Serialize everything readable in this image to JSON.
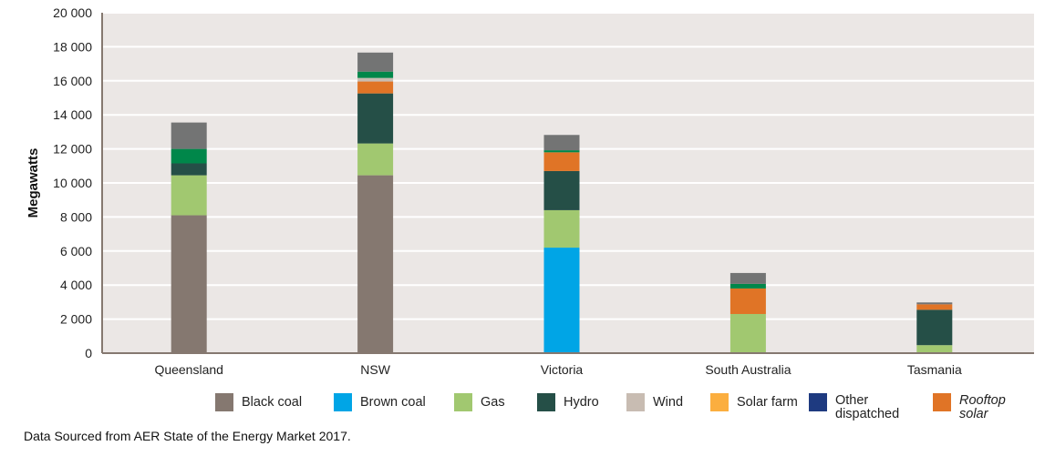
{
  "chart_data": {
    "type": "bar",
    "stacked": true,
    "categories": [
      "Queensland",
      "NSW",
      "Victoria",
      "South Australia",
      "Tasmania"
    ],
    "ylabel": "Megawatts",
    "xlabel": "",
    "ylim": [
      0,
      20000
    ],
    "yticks": [
      "0",
      "2 000",
      "4 000",
      "6 000",
      "8 000",
      "10 000",
      "12 000",
      "14 000",
      "16 000",
      "18 000",
      "20 000"
    ],
    "grid": true,
    "legend_position": "bottom",
    "series": [
      {
        "name": "Black coal",
        "color": "#857870",
        "values": [
          8100,
          10450,
          0,
          0,
          0
        ]
      },
      {
        "name": "Brown coal",
        "color": "#00a5e6",
        "values": [
          0,
          0,
          6200,
          0,
          0
        ]
      },
      {
        "name": "Gas",
        "color": "#a1c870",
        "values": [
          2350,
          1870,
          2200,
          2300,
          470
        ]
      },
      {
        "name": "Hydro",
        "color": "#254f47",
        "values": [
          700,
          2940,
          2300,
          0,
          2080
        ]
      },
      {
        "name": "Rooftop solar",
        "color": "#e07426",
        "values": [
          0,
          700,
          1100,
          1500,
          320
        ]
      },
      {
        "name": "Wind",
        "color": "#c8bcb2",
        "values": [
          0,
          210,
          0,
          0,
          0
        ]
      },
      {
        "color": "#00874a",
        "values": [
          850,
          370,
          120,
          270,
          0
        ]
      },
      {
        "color": "#737474",
        "values": [
          1550,
          1120,
          900,
          640,
          110
        ]
      }
    ],
    "legend": [
      {
        "label": "Black coal",
        "color": "#857870",
        "italic": false
      },
      {
        "label": "Brown coal",
        "color": "#00a5e6",
        "italic": false
      },
      {
        "label": "Gas",
        "color": "#a1c870",
        "italic": false
      },
      {
        "label": "Hydro",
        "color": "#254f47",
        "italic": false
      },
      {
        "label": "Wind",
        "color": "#c8bcb2",
        "italic": false
      },
      {
        "label": "Solar farm",
        "color": "#fbae3f",
        "italic": false
      },
      {
        "label": "Other dispatched",
        "color": "#1e3a80",
        "italic": false
      },
      {
        "label": "Rooftop solar",
        "color": "#e07426",
        "italic": true
      }
    ]
  },
  "footnote": "Data Sourced from AER State of the Energy Market 2017."
}
